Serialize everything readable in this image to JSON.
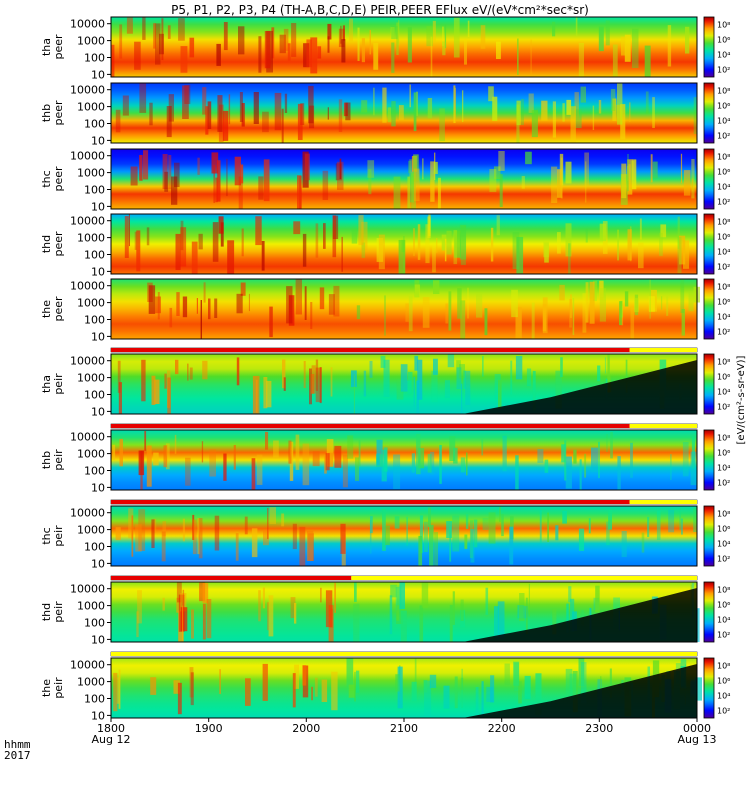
{
  "title": "P5, P1, P2, P3, P4 (TH-A,B,C,D,E) PEIR,PEER EFlux eV/(eV*cm²*sec*sr)",
  "colorbar_label": "[eV/(cm²-s-sr-eV)]",
  "corner_label": {
    "line1": "hhmm",
    "line2": "2017"
  },
  "chart_data": {
    "type": "heatmap",
    "x": {
      "ticks": [
        "1800",
        "1900",
        "2000",
        "2100",
        "2200",
        "2300",
        "0000"
      ],
      "dates": [
        "Aug 12",
        "Aug 13"
      ],
      "range": [
        "2017-08-12 18:00",
        "2017-08-13 00:00"
      ]
    },
    "y": {
      "scale": "log",
      "ticks": [
        "10",
        "100",
        "1000",
        "10000"
      ],
      "range": [
        7,
        25000
      ]
    },
    "colorbar": {
      "scale": "log",
      "ticks": [
        "10²",
        "10⁴",
        "10⁶",
        "10⁸"
      ],
      "range": [
        10,
        1000000000.0
      ]
    },
    "panels": [
      {
        "probe": "tha",
        "species": "peer",
        "ylabel": "tha peer"
      },
      {
        "probe": "thb",
        "species": "peer",
        "ylabel": "thb peer"
      },
      {
        "probe": "thc",
        "species": "peer",
        "ylabel": "thc peer"
      },
      {
        "probe": "thd",
        "species": "peer",
        "ylabel": "thd peer"
      },
      {
        "probe": "the",
        "species": "peer",
        "ylabel": "the peer"
      },
      {
        "probe": "tha",
        "species": "peir",
        "ylabel": "tha peir"
      },
      {
        "probe": "thb",
        "species": "peir",
        "ylabel": "thb peir"
      },
      {
        "probe": "thc",
        "species": "peir",
        "ylabel": "thc peir"
      },
      {
        "probe": "thd",
        "species": "peir",
        "ylabel": "thd peir"
      },
      {
        "probe": "the",
        "species": "peir",
        "ylabel": "the peir"
      }
    ]
  },
  "palette": {
    "axis": "#000000",
    "flag_red": "#e60000",
    "flag_yellow": "#ffff00"
  }
}
